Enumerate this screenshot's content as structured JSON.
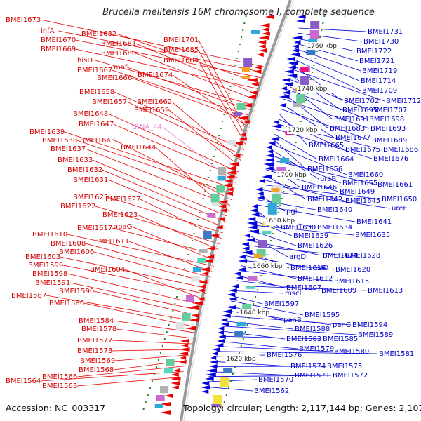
{
  "title": "Brucella melitensis 16M chromosome I, complete sequence",
  "footer": {
    "accession": "Accession: NC_003317",
    "summary": "Topology: circular; Length: 2,117,144 bp; Genes: 2,107"
  },
  "colors": {
    "forward": "#ee0000",
    "reverse": "#0000dd",
    "rna": "#e48ad8",
    "backbone": "#999999",
    "dots": "#228822"
  },
  "ticks": [
    "1760 kbp",
    "1740 kbp",
    "1720 kbp",
    "1700 kbp",
    "1680 kbp",
    "1660 kbp",
    "1640 kbp",
    "1620 kbp"
  ],
  "left_labels": [
    "BMEI1673",
    "infA",
    "BMEI1670",
    "BMEI1682",
    "BMEI1669",
    "BMEI1681",
    "BMEI1680",
    "hisD",
    "maf",
    "BMEI1667",
    "BMEI1666",
    "BMEI1674",
    "BMEI1701",
    "BMEI1685",
    "BMEI1684",
    "BMEI1658",
    "BMEI1657",
    "BMEI1662",
    "BMEI1659",
    "BMEI1648",
    "BMEI1647",
    "tRNA_44",
    "BMEI1639",
    "BMEI1638",
    "BMEI1643",
    "BMEI1637",
    "BMEI1644",
    "BMEI1633",
    "BMEI1632",
    "BMEI1631",
    "BMEI1625",
    "BMEI1627",
    "BMEI1622",
    "BMEI1623",
    "BMEI1617",
    "apaG",
    "BMEI1610",
    "BMEI1611",
    "BMEI1608",
    "BMEI1606",
    "BMEI1603",
    "BMEI1599",
    "BMEI1604",
    "BMEI1598",
    "BMEI1591",
    "BMEI1590",
    "BMEI1587",
    "BMEI1586",
    "BMEI1584",
    "BMEI1578",
    "BMEI1577",
    "BMEI1573",
    "BMEI1569",
    "BMEI1568",
    "BMEI1566",
    "BMEI1564",
    "BMEI1563"
  ],
  "right_labels": [
    "BMEI1731",
    "BMEI1730",
    "BMEI1722",
    "BMEI1721",
    "BMEI1719",
    "BMEI1714",
    "BMEI1709",
    "BMEI1702",
    "BMEI1712",
    "BMEI1695",
    "BMEI1707",
    "BMEI1691",
    "BMEI1698",
    "BMEI1683",
    "BMEI1693",
    "BMEI1677",
    "BMEI1689",
    "BMEI1665",
    "BMEI1675",
    "BMEI1686",
    "BMEI1676",
    "BMEI1664",
    "BMEI1656",
    "BMEI1660",
    "ureB",
    "BMEI1655",
    "BMEI1661",
    "BMEI1646",
    "BMEI1649",
    "BMEI1642",
    "BMEI1645",
    "BMEI1650",
    "ureE",
    "pgi",
    "BMEI1640",
    "BMEI1641",
    "BMEI1630",
    "BMEI1634",
    "BMEI1629",
    "BMEI1635",
    "BMEI1626",
    "argD",
    "BMEI1624",
    "BMEI1628",
    "BMEI1616",
    "hslO",
    "BMEI1620",
    "BMEI1612",
    "BMEI1615",
    "BMEI1607",
    "BMEI1609",
    "BMEI1613",
    "mscL",
    "BMEI1597",
    "BMEI1595",
    "panB",
    "panC",
    "BMEI1594",
    "BMEI1588",
    "BMEI1589",
    "BMEI1583",
    "BMEI1585",
    "BMEI1579",
    "BMEI1580",
    "BMEI1581",
    "BMEI1576",
    "BMEI1574",
    "BMEI1575",
    "BMEI1571",
    "BMEI1572",
    "BMEI1570",
    "BMEI1562"
  ]
}
